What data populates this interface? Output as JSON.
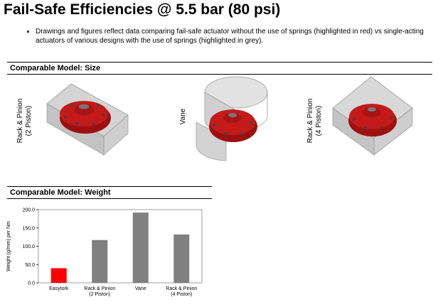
{
  "title": "Fail-Safe Efficiencies @ 5.5 bar (80 psi)",
  "bullet": "Drawings and figures reflect data comparing fail-safe actuator without the use of springs (highlighted in red) vs single-acting actuators of various designs with the use of springs (highlighted in grey).",
  "size_section": {
    "heading": "Comparable Model: Size",
    "models": [
      {
        "label_line1": "Rack & Pinion",
        "label_line2": "(2 Piston)"
      },
      {
        "label_line1": "Vane",
        "label_line2": ""
      },
      {
        "label_line1": "Rack & Pinion",
        "label_line2": "(4 Piston)"
      }
    ]
  },
  "weight_section": {
    "heading": "Comparable Model: Weight"
  },
  "colors": {
    "highlight": "#ff0000",
    "comparison": "#808080",
    "actuator": "#c41a1a"
  },
  "chart_data": {
    "type": "bar",
    "ylabel": "Weight (g/mm) per Nm",
    "ylim": [
      0,
      200
    ],
    "yticks": [
      "0.0",
      "50.0",
      "100.0",
      "150.0",
      "200.0"
    ],
    "categories": [
      {
        "line1": "Easytork",
        "line2": ""
      },
      {
        "line1": "Rack & Pinion",
        "line2": "(2 Piston)"
      },
      {
        "line1": "Vane",
        "line2": ""
      },
      {
        "line1": "Rack & Pinion",
        "line2": "(4 Piston)"
      }
    ],
    "values": [
      40,
      117,
      192,
      132
    ],
    "bar_colors": [
      "#ff0000",
      "#808080",
      "#808080",
      "#808080"
    ],
    "grid": false,
    "legend": "none"
  }
}
